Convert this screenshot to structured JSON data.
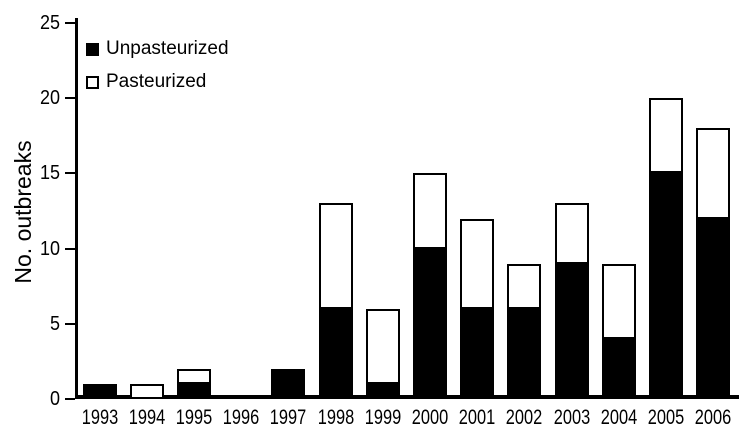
{
  "colors": {
    "background": "#ffffff",
    "axis": "#000000",
    "text": "#000000",
    "bar_unpasteurized_fill": "#000000",
    "bar_pasteurized_fill": "#ffffff",
    "bar_border": "#000000"
  },
  "chart_data": {
    "type": "bar",
    "stacked": true,
    "title": "",
    "xlabel": "",
    "ylabel": "No. outbreaks",
    "categories": [
      "1993",
      "1994",
      "1995",
      "1996",
      "1997",
      "1998",
      "1999",
      "2000",
      "2001",
      "2002",
      "2003",
      "2004",
      "2005",
      "2006"
    ],
    "series": [
      {
        "name": "Unpasteurized",
        "color": "#000000",
        "values": [
          1,
          0,
          1,
          0,
          2,
          6,
          1,
          10,
          6,
          6,
          9,
          4,
          15,
          12
        ]
      },
      {
        "name": "Pasteurized",
        "color": "#ffffff",
        "values": [
          0,
          1,
          1,
          0,
          0,
          7,
          5,
          5,
          6,
          3,
          4,
          5,
          5,
          6
        ]
      }
    ],
    "totals": [
      1,
      1,
      2,
      0,
      2,
      13,
      6,
      15,
      12,
      9,
      13,
      9,
      20,
      18
    ],
    "ylim": [
      0,
      25
    ],
    "yticks": [
      0,
      5,
      10,
      15,
      20,
      25
    ],
    "grid": false,
    "legend_position": "top-left-inside"
  },
  "legend": {
    "items": [
      {
        "label": "Unpasteurized",
        "swatch": "filled-black-square"
      },
      {
        "label": "Pasteurized",
        "swatch": "open-white-square"
      }
    ]
  }
}
